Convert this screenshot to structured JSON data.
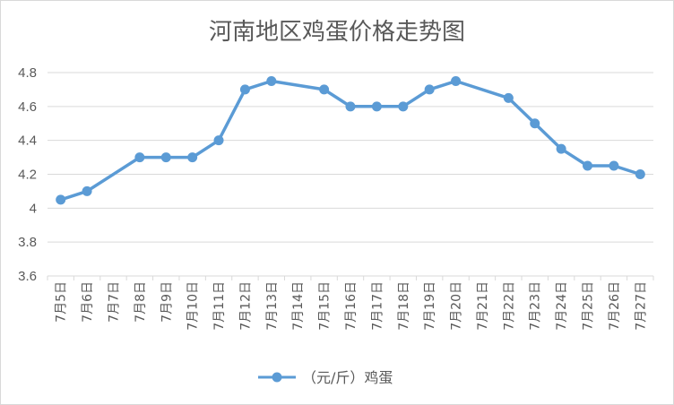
{
  "chart_data": {
    "type": "line",
    "title": "河南地区鸡蛋价格走势图",
    "categories": [
      "7月5日",
      "7月6日",
      "7月7日",
      "7月8日",
      "7月9日",
      "7月10日",
      "7月11日",
      "7月12日",
      "7月13日",
      "7月14日",
      "7月15日",
      "7月16日",
      "7月17日",
      "7月18日",
      "7月19日",
      "7月20日",
      "7月21日",
      "7月22日",
      "7月23日",
      "7月24日",
      "7月25日",
      "7月26日",
      "7月27日"
    ],
    "series": [
      {
        "name": "（元/斤）鸡蛋",
        "values": [
          4.05,
          4.1,
          null,
          4.3,
          4.3,
          4.3,
          4.4,
          4.7,
          4.75,
          null,
          4.7,
          4.6,
          4.6,
          4.6,
          4.7,
          4.75,
          null,
          4.65,
          4.5,
          4.35,
          4.25,
          4.25,
          4.2
        ]
      }
    ],
    "ylim": [
      3.6,
      4.8
    ],
    "yticks": [
      "3.6",
      "3.8",
      "4",
      "4.2",
      "4.4",
      "4.6",
      "4.8"
    ],
    "ytick_values": [
      3.6,
      3.8,
      4.0,
      4.2,
      4.4,
      4.6,
      4.8
    ],
    "grid": true,
    "legend": "bottom",
    "color": "#5b9bd5",
    "gridcolor": "#d9d9d9",
    "textcolor": "#595959"
  }
}
